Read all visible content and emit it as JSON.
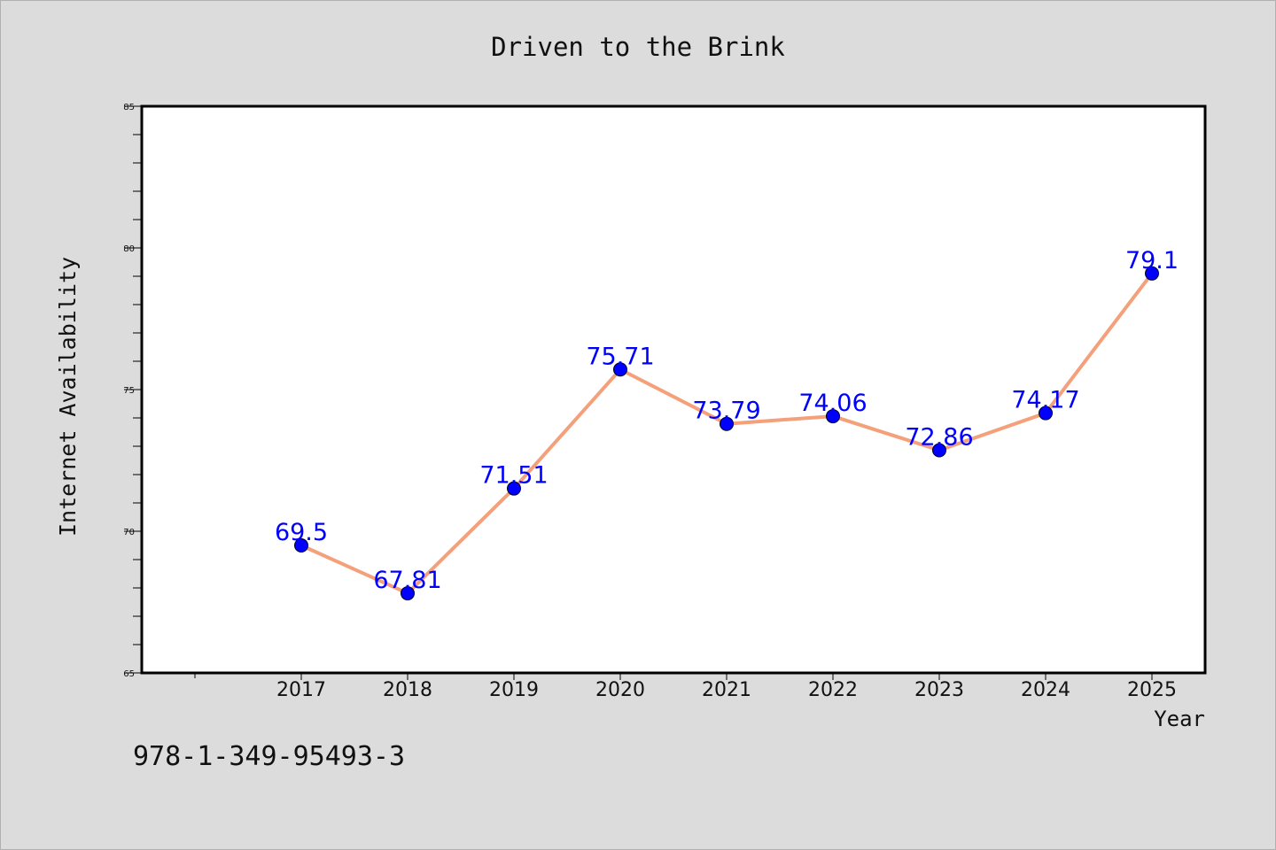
{
  "chart_data": {
    "type": "line",
    "title": "Driven to the Brink",
    "xlabel": "Year",
    "ylabel": "Internet Availability",
    "categories": [
      "2017",
      "2018",
      "2019",
      "2020",
      "2021",
      "2022",
      "2023",
      "2024",
      "2025"
    ],
    "series": [
      {
        "values": [
          69.5,
          67.81,
          71.51,
          75.71,
          73.79,
          74.06,
          72.86,
          74.17,
          79.1
        ],
        "labels": [
          "69.5",
          "67.81",
          "71.51",
          "75.71",
          "73.79",
          "74.06",
          "72.86",
          "74.17",
          "79.1"
        ],
        "line_color": "#f4a07a",
        "marker_color": "#0000ff",
        "label_color": "#0000ff"
      }
    ],
    "ylim": [
      65,
      85
    ],
    "y_ticks": [
      "65",
      "70",
      "75",
      "80",
      "85"
    ],
    "grid": false,
    "legend": "none"
  },
  "footer_text": "978-1-349-95493-3",
  "colors": {
    "background": "#dcdcdc",
    "plot_background": "#ffffff",
    "axis": "#000000"
  }
}
